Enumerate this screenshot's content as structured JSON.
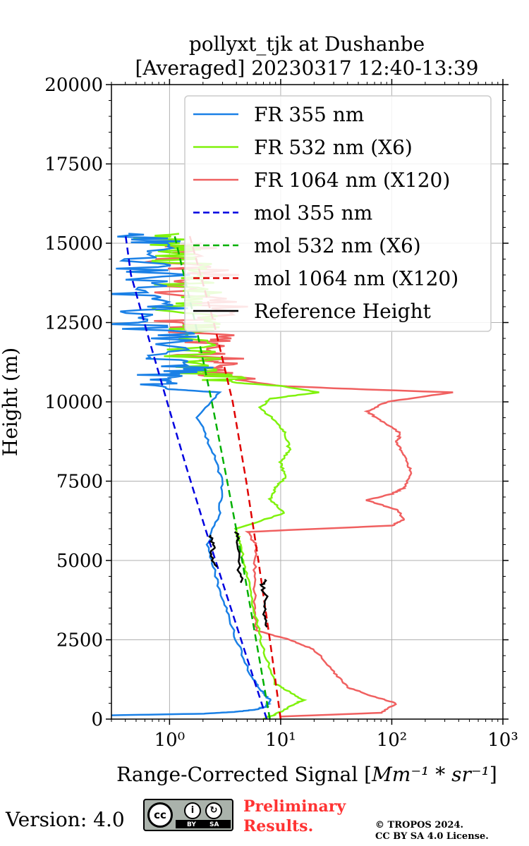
{
  "chart_data": {
    "type": "line",
    "title_line1": "pollyxt_tjk at Dushanbe",
    "title_line2": "[Averaged] 20230317 12:40-13:39",
    "xlabel": "Range-Corrected Signal [Mm⁻¹ * sr⁻¹]",
    "ylabel": "Height (m)",
    "xscale": "log",
    "xlim": [
      0.3,
      1000
    ],
    "ylim": [
      0,
      20000
    ],
    "x_ticks": [
      {
        "value": 1,
        "label": "10⁰"
      },
      {
        "value": 10,
        "label": "10¹"
      },
      {
        "value": 100,
        "label": "10²"
      },
      {
        "value": 1000,
        "label": "10³"
      }
    ],
    "y_ticks": [
      {
        "value": 0,
        "label": "0"
      },
      {
        "value": 2500,
        "label": "2500"
      },
      {
        "value": 5000,
        "label": "5000"
      },
      {
        "value": 7500,
        "label": "7500"
      },
      {
        "value": 10000,
        "label": "10000"
      },
      {
        "value": 12500,
        "label": "12500"
      },
      {
        "value": 15000,
        "label": "15000"
      },
      {
        "value": 17500,
        "label": "17500"
      },
      {
        "value": 20000,
        "label": "20000"
      }
    ],
    "grid": true,
    "legend_position": "top-right",
    "series": [
      {
        "name": "FR 355 nm",
        "color": "#1a80e6",
        "style": "solid",
        "noisy_above": 10500,
        "points": [
          [
            0.3,
            120
          ],
          [
            2,
            170
          ],
          [
            4,
            230
          ],
          [
            6,
            300
          ],
          [
            7.5,
            400
          ],
          [
            8,
            600
          ],
          [
            7,
            850
          ],
          [
            5.5,
            1300
          ],
          [
            4,
            2500
          ],
          [
            3.2,
            3500
          ],
          [
            2.6,
            4500
          ],
          [
            2.2,
            5500
          ],
          [
            2.8,
            6500
          ],
          [
            3,
            7500
          ],
          [
            2.4,
            8500
          ],
          [
            1.8,
            9500
          ],
          [
            2.8,
            10300
          ],
          [
            1,
            10400
          ],
          [
            0.6,
            10700
          ],
          [
            2,
            11000
          ],
          [
            0.7,
            11400
          ],
          [
            1.5,
            12000
          ],
          [
            0.5,
            12500
          ],
          [
            1,
            13000
          ],
          [
            0.5,
            13500
          ],
          [
            1.1,
            14000
          ],
          [
            0.5,
            14500
          ],
          [
            1,
            15000
          ],
          [
            0.4,
            15300
          ]
        ]
      },
      {
        "name": "FR 532 nm (X6)",
        "color": "#80f20d",
        "style": "solid",
        "noisy_above": 10600,
        "points": [
          [
            7,
            0
          ],
          [
            9,
            150
          ],
          [
            13,
            450
          ],
          [
            16,
            600
          ],
          [
            12,
            850
          ],
          [
            9,
            1100
          ],
          [
            7,
            2200
          ],
          [
            5.7,
            3500
          ],
          [
            5,
            4500
          ],
          [
            4.3,
            5500
          ],
          [
            4,
            6000
          ],
          [
            11,
            6500
          ],
          [
            8,
            6900
          ],
          [
            9,
            7300
          ],
          [
            11,
            7600
          ],
          [
            10,
            8100
          ],
          [
            12,
            8500
          ],
          [
            11,
            9000
          ],
          [
            9,
            9400
          ],
          [
            6.5,
            9800
          ],
          [
            8,
            10100
          ],
          [
            22,
            10300
          ],
          [
            10,
            10500
          ],
          [
            4,
            10600
          ],
          [
            2.5,
            10900
          ],
          [
            2,
            11300
          ],
          [
            1.6,
            12000
          ],
          [
            2,
            12500
          ],
          [
            1.4,
            13000
          ],
          [
            2,
            13500
          ],
          [
            1.3,
            14000
          ],
          [
            1.8,
            14500
          ],
          [
            1.2,
            15000
          ],
          [
            1,
            15300
          ]
        ]
      },
      {
        "name": "FR 1064 nm (X120)",
        "color": "#f06060",
        "style": "solid",
        "noisy_above": 10700,
        "points": [
          [
            10,
            80
          ],
          [
            80,
            200
          ],
          [
            110,
            500
          ],
          [
            70,
            700
          ],
          [
            40,
            1000
          ],
          [
            30,
            1500
          ],
          [
            20,
            2200
          ],
          [
            12,
            2500
          ],
          [
            6,
            2800
          ],
          [
            5.8,
            3500
          ],
          [
            5.8,
            4500
          ],
          [
            6,
            5500
          ],
          [
            5,
            5900
          ],
          [
            100,
            6100
          ],
          [
            130,
            6300
          ],
          [
            110,
            6600
          ],
          [
            60,
            6900
          ],
          [
            100,
            7100
          ],
          [
            130,
            7300
          ],
          [
            150,
            7800
          ],
          [
            130,
            8300
          ],
          [
            110,
            8700
          ],
          [
            120,
            9000
          ],
          [
            80,
            9400
          ],
          [
            60,
            9700
          ],
          [
            90,
            10000
          ],
          [
            350,
            10300
          ],
          [
            50,
            10400
          ],
          [
            10,
            10500
          ],
          [
            4,
            10700
          ],
          [
            2,
            11000
          ],
          [
            4,
            11300
          ],
          [
            1.5,
            11600
          ],
          [
            3,
            12000
          ],
          [
            1.4,
            12500
          ],
          [
            4,
            13000
          ],
          [
            1.3,
            13500
          ],
          [
            3,
            14000
          ],
          [
            1.2,
            14500
          ],
          [
            2.5,
            15000
          ]
        ]
      },
      {
        "name": "mol 355 nm",
        "color": "#0000e0",
        "style": "dashed",
        "points": [
          [
            7.5,
            0
          ],
          [
            4.9,
            2000
          ],
          [
            3.2,
            4000
          ],
          [
            2.1,
            6000
          ],
          [
            1.4,
            8000
          ],
          [
            0.95,
            10000
          ],
          [
            0.65,
            12000
          ],
          [
            0.45,
            14000
          ],
          [
            0.4,
            15300
          ]
        ]
      },
      {
        "name": "mol 532 nm (X6)",
        "color": "#00b000",
        "style": "dashed",
        "points": [
          [
            8,
            0
          ],
          [
            6,
            2500
          ],
          [
            4.5,
            5000
          ],
          [
            3.3,
            7500
          ],
          [
            2.4,
            10000
          ],
          [
            1.7,
            12500
          ],
          [
            1.1,
            15300
          ]
        ]
      },
      {
        "name": "mol 1064 nm (X120)",
        "color": "#e00000",
        "style": "dashed",
        "points": [
          [
            10,
            0
          ],
          [
            8,
            2500
          ],
          [
            6.3,
            5000
          ],
          [
            4.9,
            7500
          ],
          [
            3.7,
            10000
          ],
          [
            2.5,
            12500
          ],
          [
            1.5,
            15300
          ]
        ]
      },
      {
        "name": "Reference Height",
        "color": "#000000",
        "style": "solid",
        "segments": [
          [
            [
              7.5,
              2900
            ],
            [
              7,
              3300
            ],
            [
              7.5,
              3800
            ],
            [
              6.8,
              4200
            ],
            [
              7.2,
              4400
            ]
          ],
          [
            [
              4.5,
              4300
            ],
            [
              4.2,
              4700
            ],
            [
              4.2,
              5500
            ],
            [
              4,
              5900
            ]
          ],
          [
            [
              2.6,
              4800
            ],
            [
              2.4,
              5200
            ],
            [
              2.5,
              5500
            ],
            [
              2.3,
              5800
            ]
          ]
        ]
      }
    ]
  },
  "footer": {
    "version_text": "Version: 4.0",
    "license_badge": {
      "cc": "cc",
      "by": "BY",
      "sa": "SA",
      "by_icon": "person-icon",
      "sa_icon": "share-alike-icon"
    },
    "preliminary_line1": "Preliminary",
    "preliminary_line2": "Results.",
    "copyright_line1": "© TROPOS 2024.",
    "copyright_line2": "CC BY SA 4.0 License."
  }
}
